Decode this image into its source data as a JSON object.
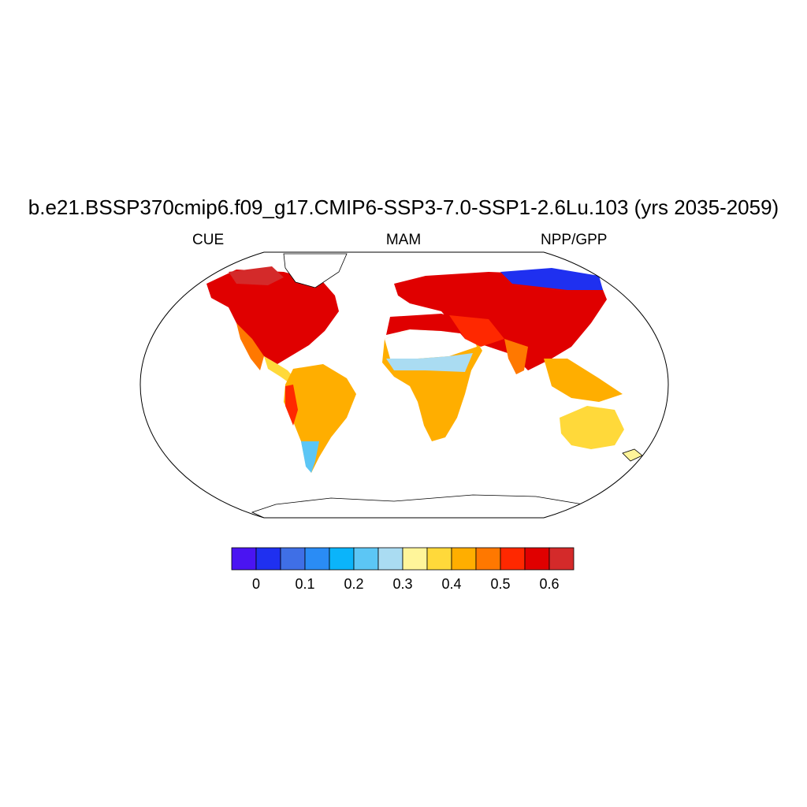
{
  "title": "b.e21.BSSP370cmip6.f09_g17.CMIP6-SSP3-7.0-SSP1-2.6Lu.103 (yrs 2035-2059)",
  "subtitles": {
    "left": "CUE",
    "center": "MAM",
    "right": "NPP/GPP"
  },
  "colorbar": {
    "colors": [
      "#4a14f2",
      "#1f30f0",
      "#3f6fe6",
      "#2a8cf5",
      "#0bb4fa",
      "#5cc6f5",
      "#aadcf2",
      "#fff59a",
      "#ffd93a",
      "#ffae00",
      "#ff7800",
      "#ff2800",
      "#e00000",
      "#d42a2a"
    ],
    "tick_labels": [
      "0",
      "0.1",
      "0.2",
      "0.3",
      "0.4",
      "0.5",
      "0.6"
    ]
  },
  "map_legend": {
    "variable": "CUE",
    "season": "MAM",
    "projection": "Robinson",
    "missing_value_color": "#ffffff"
  }
}
